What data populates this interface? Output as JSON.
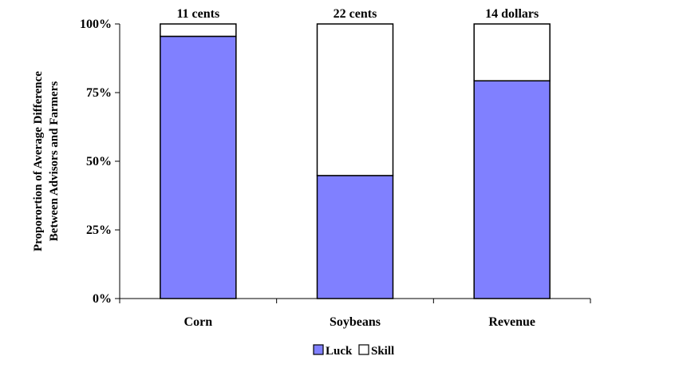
{
  "chart_data": {
    "type": "bar",
    "stacked": true,
    "categories": [
      "Corn",
      "Soybeans",
      "Revenue"
    ],
    "series": [
      {
        "name": "Luck",
        "values": [
          95.5,
          44.8,
          79.3
        ],
        "color": "#8080ff"
      },
      {
        "name": "Skill",
        "values": [
          4.5,
          55.2,
          20.7
        ],
        "color": "#ffffff"
      }
    ],
    "top_labels": [
      "11 cents",
      "22 cents",
      "14 dollars"
    ],
    "ylabel_lines": [
      "Proporortion of Average Difference",
      "Between Advisors and Farmers"
    ],
    "ylim": [
      0,
      100
    ],
    "yticks": [
      0,
      25,
      50,
      75,
      100
    ],
    "ytick_labels": [
      "0%",
      "25%",
      "50%",
      "75%",
      "100%"
    ],
    "grid": false,
    "legend_position": "bottom"
  }
}
